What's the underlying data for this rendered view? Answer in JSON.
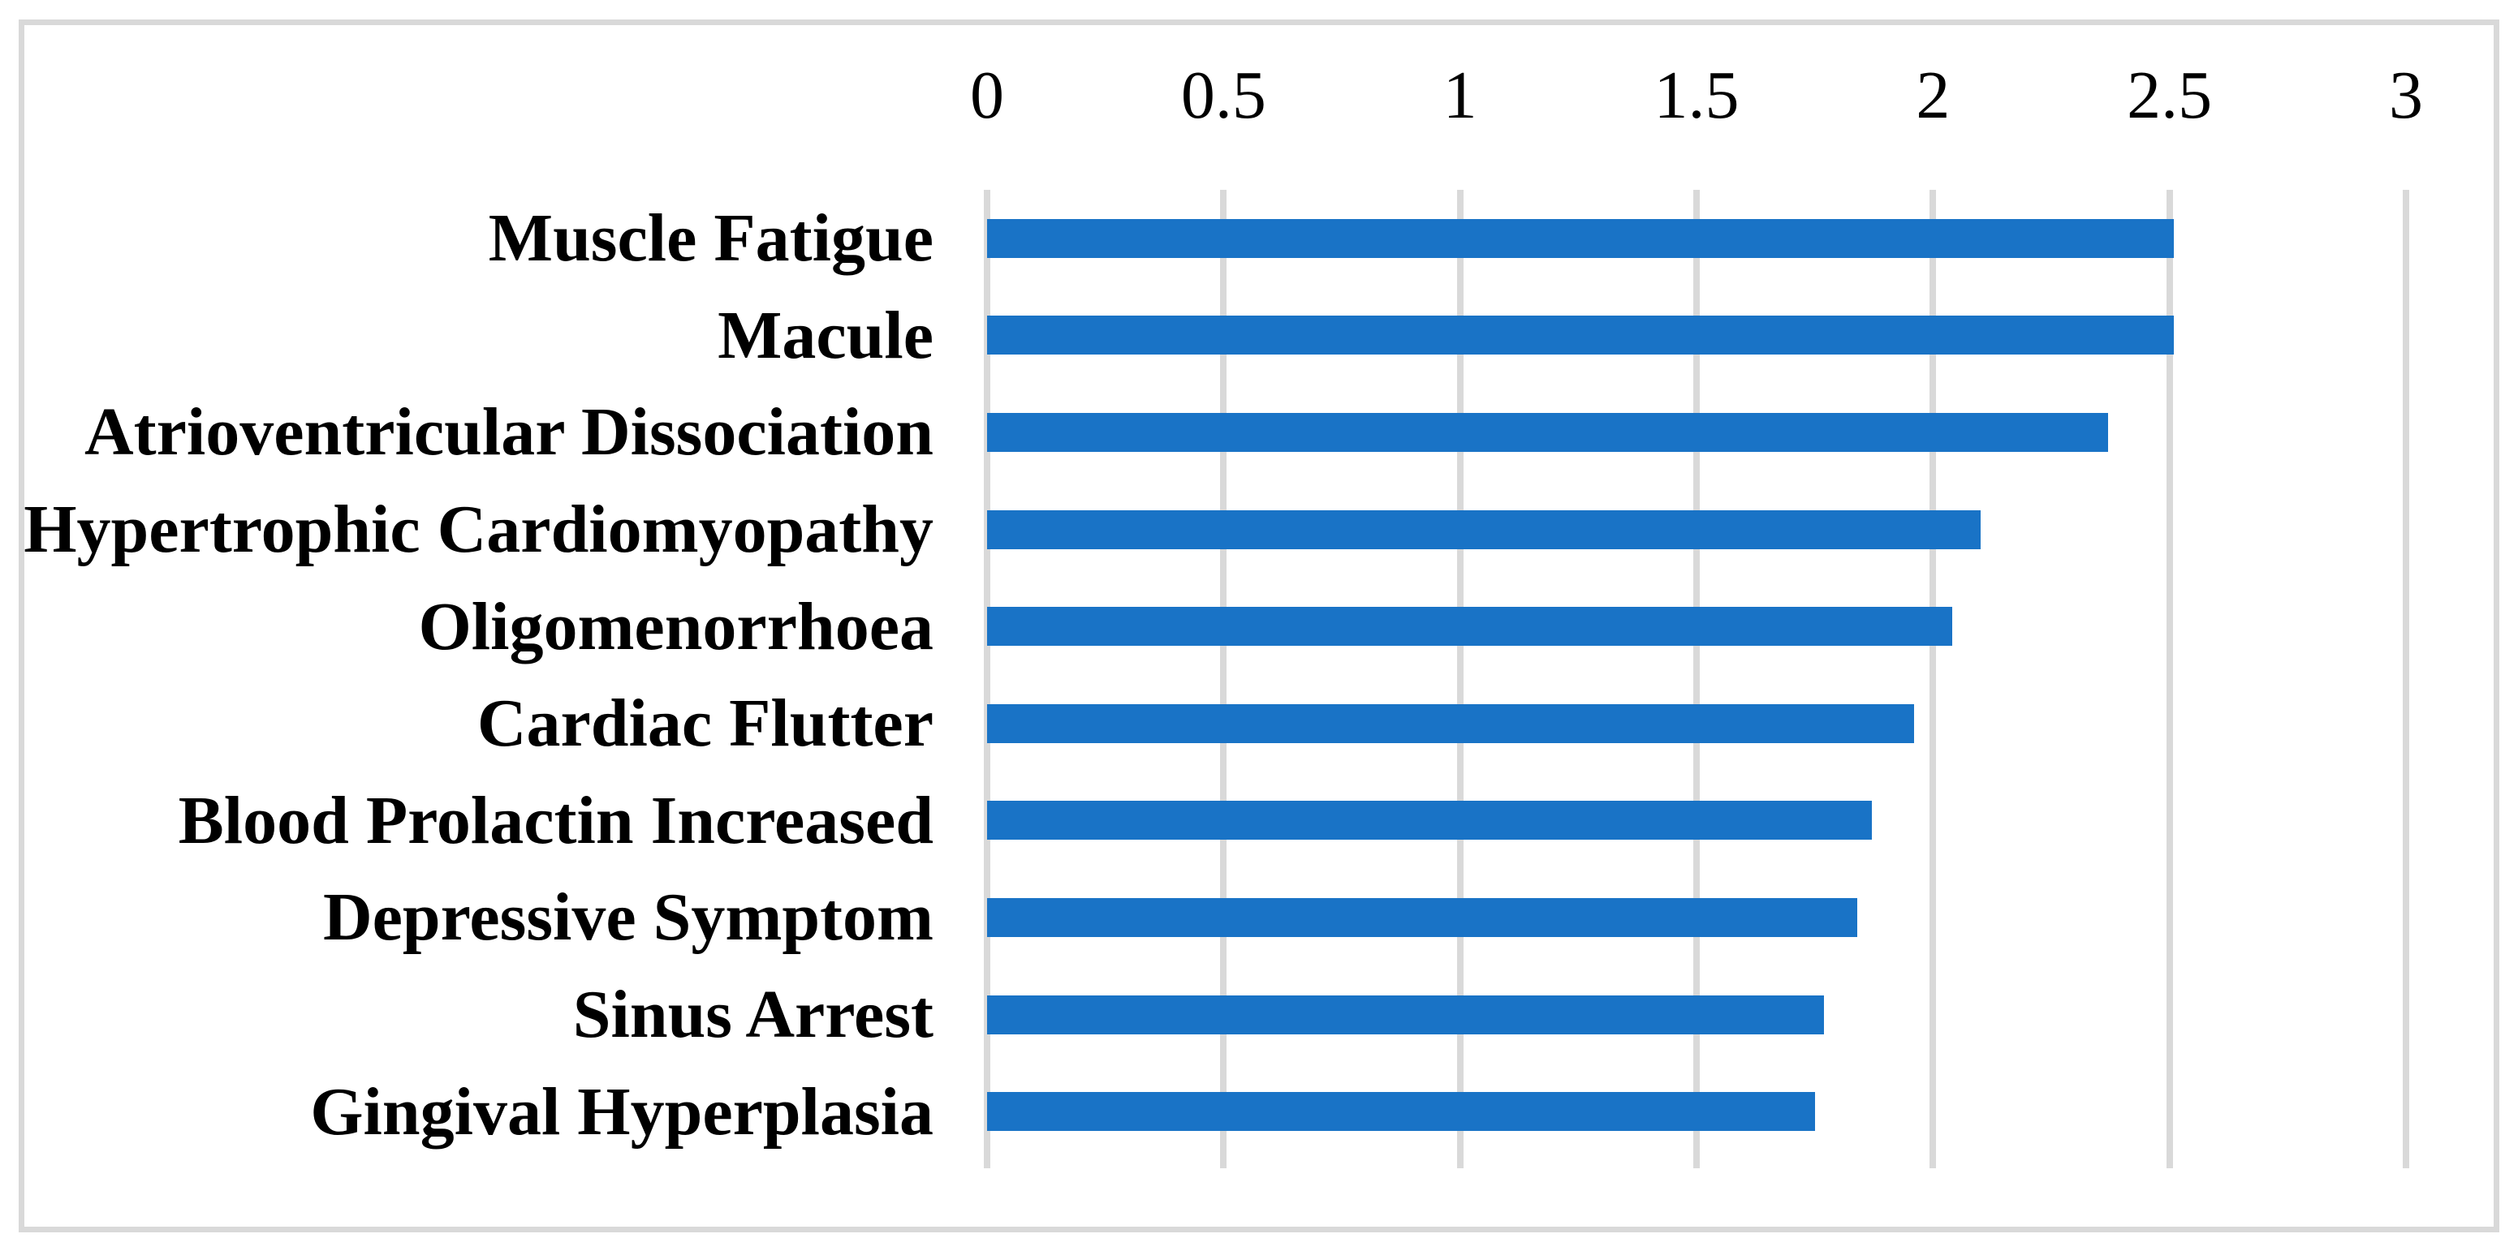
{
  "figure": {
    "background_color": "#ffffff",
    "border_color": "#d9d9d9",
    "text_color": "#000000"
  },
  "chart_data": {
    "type": "bar",
    "orientation": "horizontal",
    "title": "",
    "xlabel": "",
    "ylabel": "",
    "categories": [
      "Muscle Fatigue",
      "Macule",
      "Atrioventricular Dissociation",
      "Hypertrophic Cardiomyopathy",
      "Oligomenorrhoea",
      "Cardiac Flutter",
      "Blood Prolactin Increased",
      "Depressive Symptom",
      "Sinus Arrest",
      "Gingival Hyperplasia"
    ],
    "values": [
      2.51,
      2.51,
      2.37,
      2.1,
      2.04,
      1.96,
      1.87,
      1.84,
      1.77,
      1.75
    ],
    "xlim": [
      0,
      3
    ],
    "tick_values": [
      0,
      0.5,
      1,
      1.5,
      2,
      2.5,
      3
    ],
    "x_ticks": [
      "0",
      "0.5",
      "1",
      "1.5",
      "2",
      "2.5",
      "3"
    ],
    "axis_position": "top",
    "grid": true,
    "legend": false,
    "bar_color": "#1973c6",
    "gridline_color": "#d9d9d9"
  }
}
